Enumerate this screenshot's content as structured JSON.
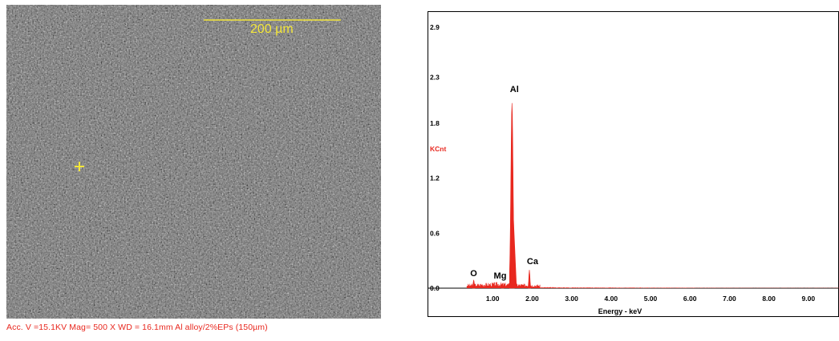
{
  "sem_image": {
    "scale_bar_label": "200 µm",
    "caption": "Acc. V =15.1KV Mag= 500 X WD = 16.1mm Al alloy/2%EPs (150µm)",
    "marker_color": "#f3e63a",
    "caption_color": "#e8281f"
  },
  "chart_data": {
    "type": "bar",
    "title": "",
    "xlabel": "Energy - keV",
    "ylabel": "KCnt",
    "xlim": [
      0,
      10.2
    ],
    "ylim": [
      0,
      2.9
    ],
    "x_ticks": [
      "1.00",
      "2.00",
      "3.00",
      "4.00",
      "5.00",
      "6.00",
      "7.00",
      "8.00",
      "9.00"
    ],
    "y_ticks": [
      "0.0",
      "0.6",
      "1.2",
      "1.8",
      "2.3",
      "2.9"
    ],
    "peaks": [
      {
        "element": "O",
        "energy": 0.52,
        "kcnt": 0.09
      },
      {
        "element": "Mg",
        "energy": 1.25,
        "kcnt": 0.05
      },
      {
        "element": "Al",
        "energy": 1.49,
        "kcnt": 2.02
      },
      {
        "element": "Ca",
        "energy": 1.93,
        "kcnt": 0.2
      }
    ],
    "series_color": "#e8281f",
    "grid": false
  }
}
